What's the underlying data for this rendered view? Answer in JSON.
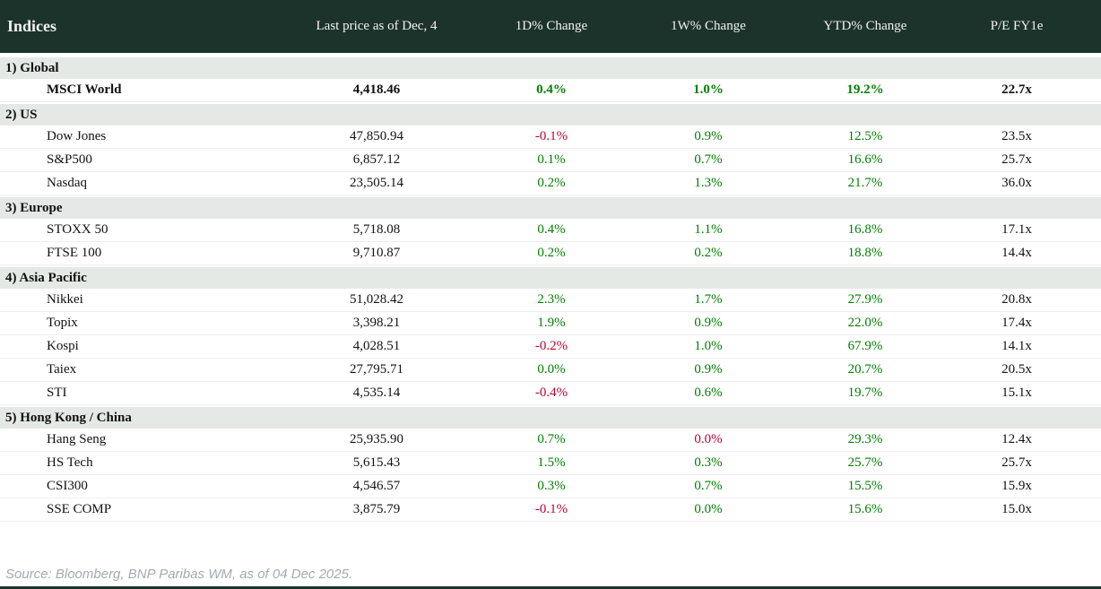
{
  "header": {
    "title": "Indices",
    "columns": [
      "Last price as of Dec, 4",
      "1D% Change",
      "1W% Change",
      "YTD% Change",
      "P/E FY1e"
    ]
  },
  "colors": {
    "header_bg": "#1c332c",
    "section_bg": "#e4e9e6",
    "positive": "#008000",
    "negative": "#c2002f"
  },
  "chart_data": {
    "type": "table",
    "title": "Indices",
    "columns": [
      "Indices",
      "Last price as of Dec, 4",
      "1D% Change",
      "1W% Change",
      "YTD% Change",
      "P/E FY1e"
    ],
    "sections": [
      {
        "label": "1) Global",
        "rows": [
          {
            "name": "MSCI World",
            "last": "4,418.46",
            "bold": true,
            "changes": [
              {
                "v": "0.4%",
                "neg": false
              },
              {
                "v": "1.0%",
                "neg": false
              },
              {
                "v": "19.2%",
                "neg": false
              }
            ],
            "pe": "22.7x"
          }
        ]
      },
      {
        "label": "2) US",
        "rows": [
          {
            "name": "Dow Jones",
            "last": "47,850.94",
            "bold": false,
            "changes": [
              {
                "v": "-0.1%",
                "neg": true
              },
              {
                "v": "0.9%",
                "neg": false
              },
              {
                "v": "12.5%",
                "neg": false
              }
            ],
            "pe": "23.5x"
          },
          {
            "name": "S&P500",
            "last": "6,857.12",
            "bold": false,
            "changes": [
              {
                "v": "0.1%",
                "neg": false
              },
              {
                "v": "0.7%",
                "neg": false
              },
              {
                "v": "16.6%",
                "neg": false
              }
            ],
            "pe": "25.7x"
          },
          {
            "name": "Nasdaq",
            "last": "23,505.14",
            "bold": false,
            "changes": [
              {
                "v": "0.2%",
                "neg": false
              },
              {
                "v": "1.3%",
                "neg": false
              },
              {
                "v": "21.7%",
                "neg": false
              }
            ],
            "pe": "36.0x"
          }
        ]
      },
      {
        "label": "3) Europe",
        "rows": [
          {
            "name": "STOXX 50",
            "last": "5,718.08",
            "bold": false,
            "changes": [
              {
                "v": "0.4%",
                "neg": false
              },
              {
                "v": "1.1%",
                "neg": false
              },
              {
                "v": "16.8%",
                "neg": false
              }
            ],
            "pe": "17.1x"
          },
          {
            "name": "FTSE 100",
            "last": "9,710.87",
            "bold": false,
            "changes": [
              {
                "v": "0.2%",
                "neg": false
              },
              {
                "v": "0.2%",
                "neg": false
              },
              {
                "v": "18.8%",
                "neg": false
              }
            ],
            "pe": "14.4x"
          }
        ]
      },
      {
        "label": "4) Asia Pacific",
        "rows": [
          {
            "name": "Nikkei",
            "last": "51,028.42",
            "bold": false,
            "changes": [
              {
                "v": "2.3%",
                "neg": false
              },
              {
                "v": "1.7%",
                "neg": false
              },
              {
                "v": "27.9%",
                "neg": false
              }
            ],
            "pe": "20.8x"
          },
          {
            "name": "Topix",
            "last": "3,398.21",
            "bold": false,
            "changes": [
              {
                "v": "1.9%",
                "neg": false
              },
              {
                "v": "0.9%",
                "neg": false
              },
              {
                "v": "22.0%",
                "neg": false
              }
            ],
            "pe": "17.4x"
          },
          {
            "name": "Kospi",
            "last": "4,028.51",
            "bold": false,
            "changes": [
              {
                "v": "-0.2%",
                "neg": true
              },
              {
                "v": "1.0%",
                "neg": false
              },
              {
                "v": "67.9%",
                "neg": false
              }
            ],
            "pe": "14.1x"
          },
          {
            "name": "Taiex",
            "last": "27,795.71",
            "bold": false,
            "changes": [
              {
                "v": "0.0%",
                "neg": false
              },
              {
                "v": "0.9%",
                "neg": false
              },
              {
                "v": "20.7%",
                "neg": false
              }
            ],
            "pe": "20.5x"
          },
          {
            "name": "STI",
            "last": "4,535.14",
            "bold": false,
            "changes": [
              {
                "v": "-0.4%",
                "neg": true
              },
              {
                "v": "0.6%",
                "neg": false
              },
              {
                "v": "19.7%",
                "neg": false
              }
            ],
            "pe": "15.1x"
          }
        ]
      },
      {
        "label": "5) Hong Kong / China",
        "rows": [
          {
            "name": "Hang Seng",
            "last": "25,935.90",
            "bold": false,
            "changes": [
              {
                "v": "0.7%",
                "neg": false
              },
              {
                "v": "0.0%",
                "neg": true
              },
              {
                "v": "29.3%",
                "neg": false
              }
            ],
            "pe": "12.4x"
          },
          {
            "name": "HS Tech",
            "last": "5,615.43",
            "bold": false,
            "changes": [
              {
                "v": "1.5%",
                "neg": false
              },
              {
                "v": "0.3%",
                "neg": false
              },
              {
                "v": "25.7%",
                "neg": false
              }
            ],
            "pe": "25.7x"
          },
          {
            "name": "CSI300",
            "last": "4,546.57",
            "bold": false,
            "changes": [
              {
                "v": "0.3%",
                "neg": false
              },
              {
                "v": "0.7%",
                "neg": false
              },
              {
                "v": "15.5%",
                "neg": false
              }
            ],
            "pe": "15.9x"
          },
          {
            "name": "SSE COMP",
            "last": "3,875.79",
            "bold": false,
            "changes": [
              {
                "v": "-0.1%",
                "neg": true
              },
              {
                "v": "0.0%",
                "neg": false
              },
              {
                "v": "15.6%",
                "neg": false
              }
            ],
            "pe": "15.0x"
          }
        ]
      }
    ]
  },
  "footer": {
    "source": "Source: Bloomberg, BNP Paribas WM, as of 04 Dec 2025."
  }
}
